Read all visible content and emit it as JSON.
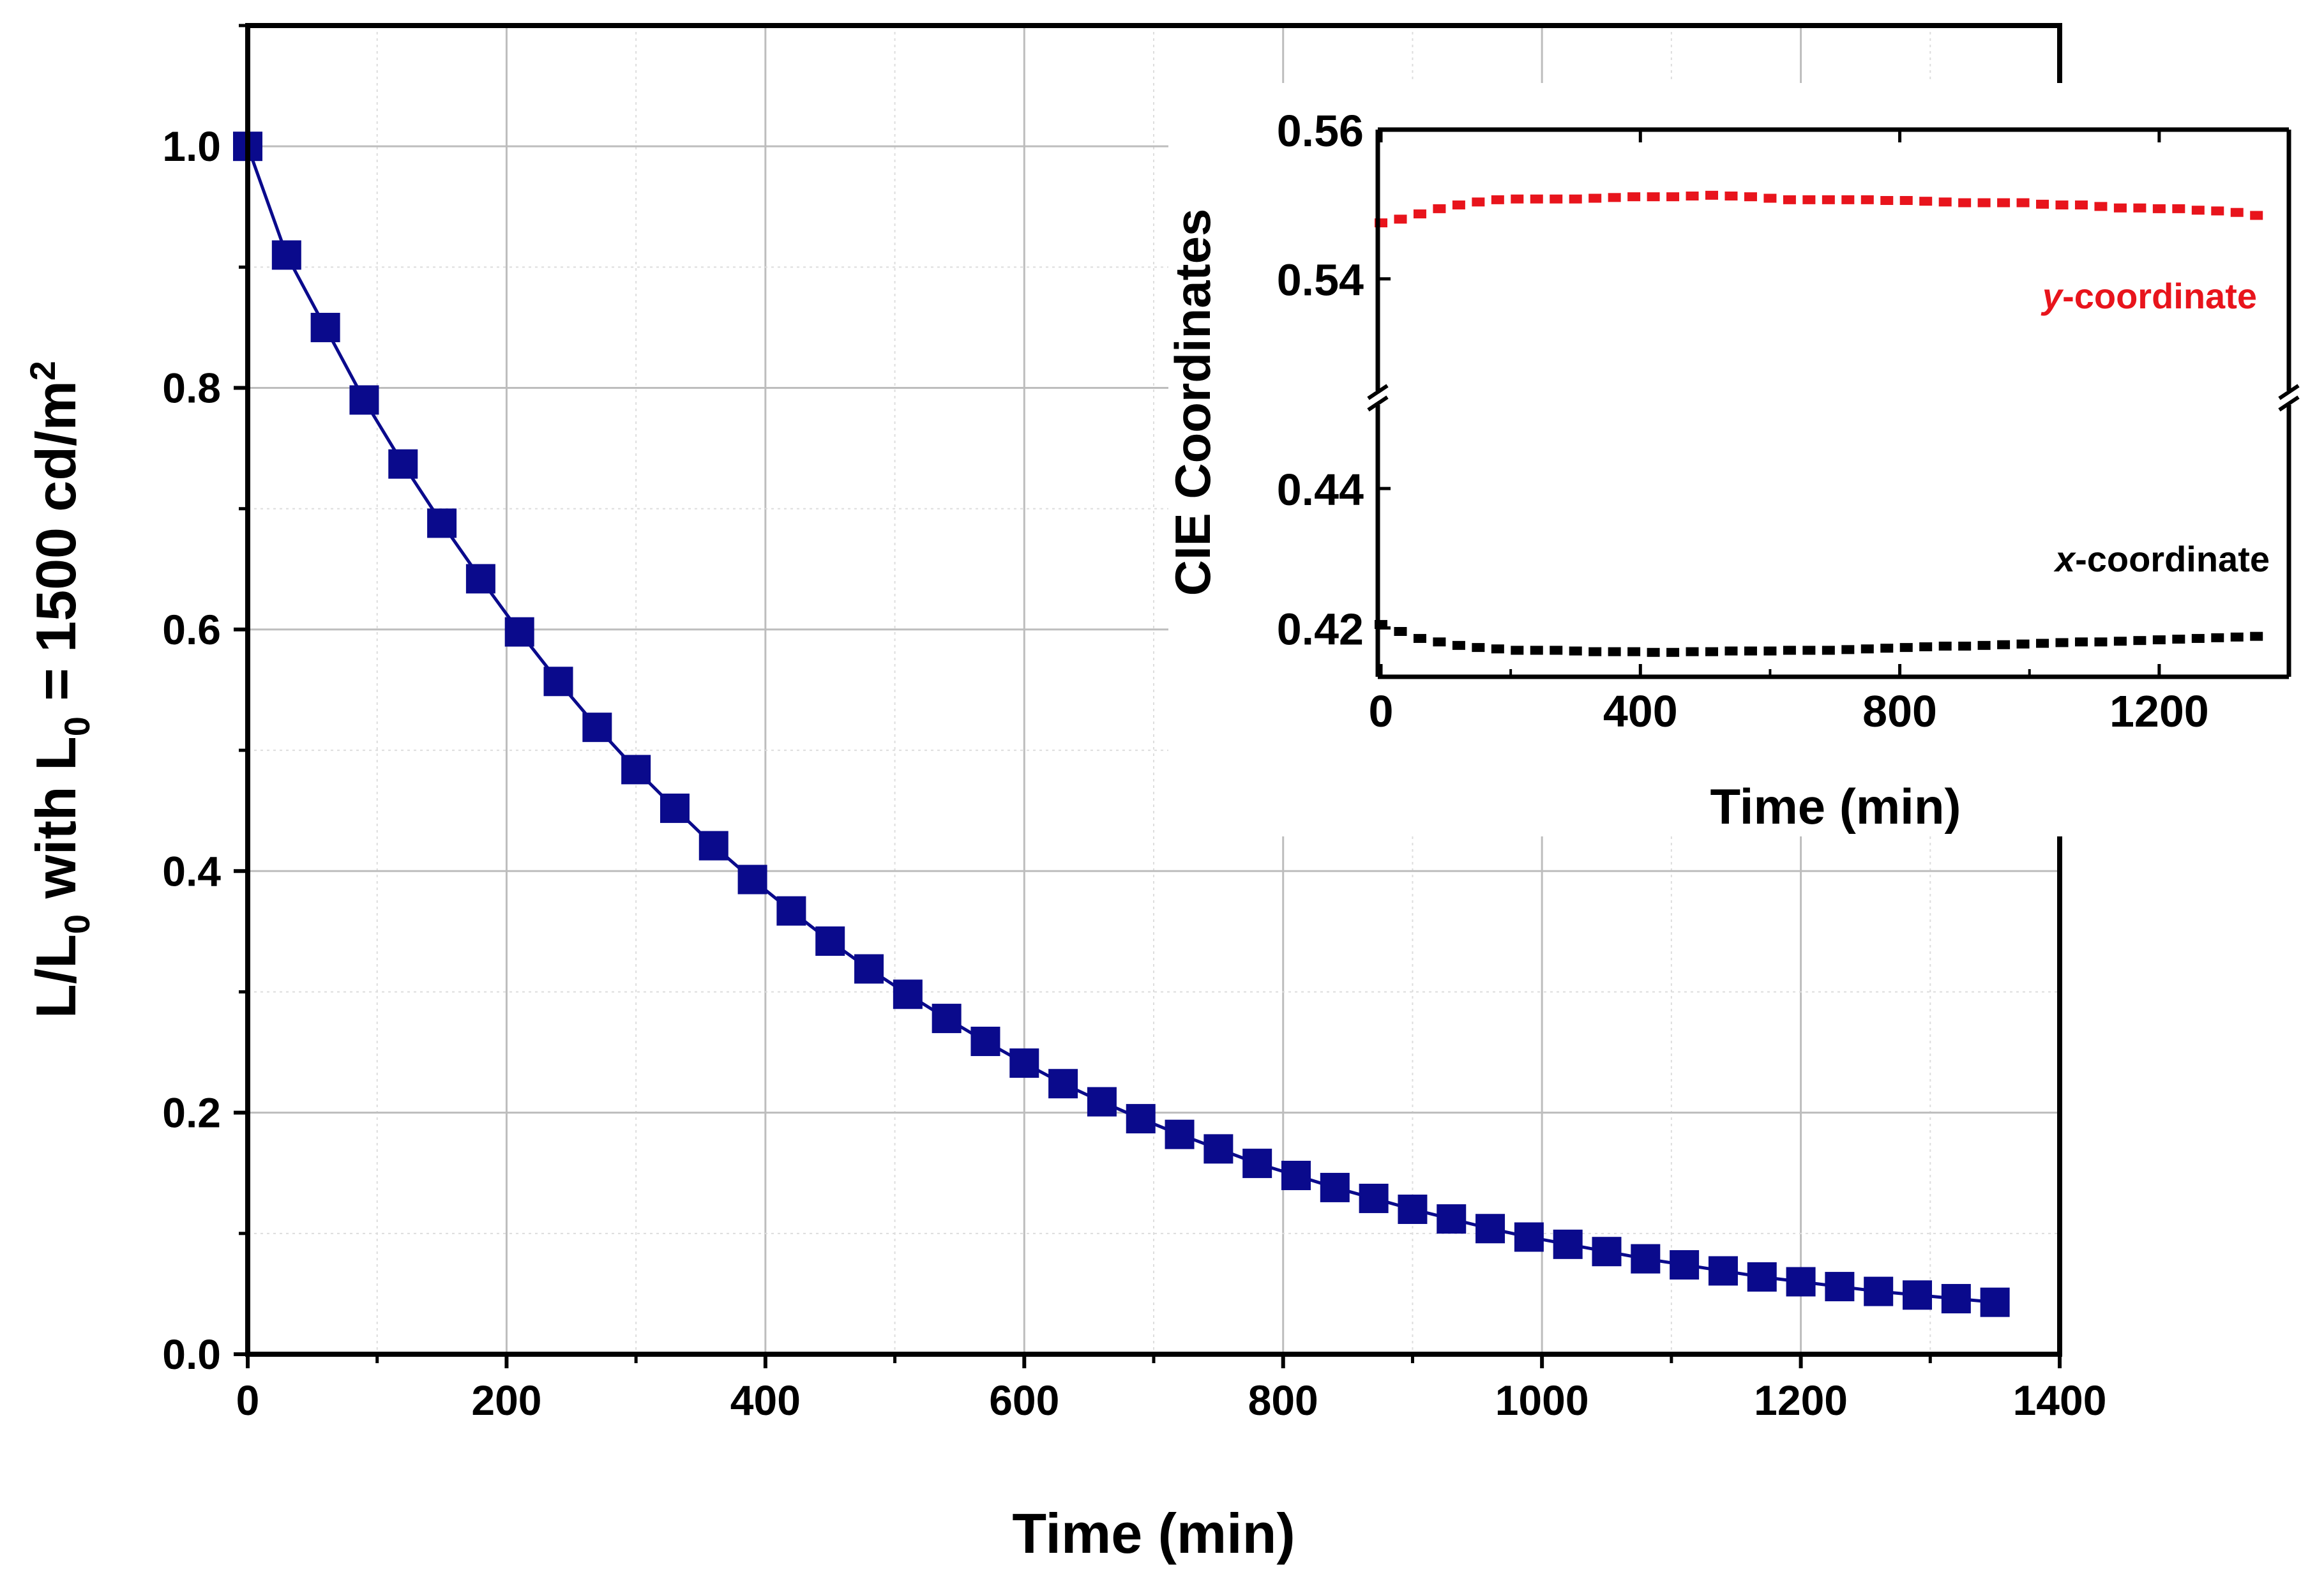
{
  "chart_data": [
    {
      "type": "scatter",
      "xlabel": "Time (min)",
      "ylabel_parts": {
        "a": "L/L",
        "sub1": "0",
        "b": " with L",
        "sub2": "0",
        "c": " = 1500 cd/m",
        "sup": "2"
      },
      "xlim": [
        0,
        1400
      ],
      "ylim": [
        0,
        1.1
      ],
      "xticks": [
        0,
        200,
        400,
        600,
        800,
        1000,
        1200,
        1400
      ],
      "xtick_labels": [
        "0",
        "200",
        "400",
        "600",
        "800",
        "1000",
        "1200",
        "1400"
      ],
      "yticks": [
        0.0,
        0.2,
        0.4,
        0.6,
        0.8,
        1.0
      ],
      "ytick_labels": [
        "0.0",
        "0.2",
        "0.4",
        "0.6",
        "0.8",
        "1.0"
      ],
      "grid": true,
      "colors": {
        "marker": "#0a0a8c",
        "line": "#0a0a8c"
      },
      "series": [
        {
          "name": "L/L0",
          "x": [
            0,
            30,
            60,
            90,
            120,
            150,
            180,
            210,
            240,
            270,
            300,
            330,
            360,
            390,
            420,
            450,
            480,
            510,
            540,
            570,
            600,
            630,
            660,
            690,
            720,
            750,
            780,
            810,
            840,
            870,
            900,
            930,
            960,
            990,
            1020,
            1050,
            1080,
            1110,
            1140,
            1170,
            1200,
            1230,
            1260,
            1290,
            1320,
            1350
          ],
          "values": [
            1.0,
            0.91,
            0.85,
            0.79,
            0.737,
            0.688,
            0.642,
            0.598,
            0.557,
            0.519,
            0.484,
            0.452,
            0.421,
            0.393,
            0.367,
            0.342,
            0.319,
            0.298,
            0.278,
            0.259,
            0.241,
            0.224,
            0.209,
            0.195,
            0.182,
            0.17,
            0.158,
            0.148,
            0.138,
            0.129,
            0.12,
            0.112,
            0.104,
            0.097,
            0.091,
            0.085,
            0.079,
            0.074,
            0.069,
            0.064,
            0.06,
            0.056,
            0.052,
            0.049,
            0.046,
            0.043
          ]
        }
      ]
    },
    {
      "type": "scatter",
      "inset": true,
      "ylabel": "CIE Coordinates",
      "xlabel": "Time (min)",
      "xlim": [
        0,
        1400
      ],
      "xticks": [
        0,
        400,
        800,
        1200
      ],
      "xtick_labels": [
        "0",
        "400",
        "800",
        "1200"
      ],
      "y_upper_range": [
        0.525,
        0.56
      ],
      "y_lower_range": [
        0.413,
        0.452
      ],
      "yticks_upper": [
        0.54,
        0.56
      ],
      "ytick_labels_upper": [
        "0.54",
        "0.56"
      ],
      "yticks_lower": [
        0.42,
        0.44
      ],
      "ytick_labels_lower": [
        "0.42",
        "0.44"
      ],
      "axis_break": true,
      "annotations": {
        "y_label_italic": "y",
        "y_label_rest": "-coordinate",
        "x_label_italic": "x",
        "x_label_rest": "-coordinate"
      },
      "series": [
        {
          "name": "y-coordinate",
          "color": "#e8141c",
          "x": [
            0,
            30,
            60,
            90,
            120,
            150,
            180,
            210,
            240,
            270,
            300,
            330,
            360,
            390,
            420,
            450,
            480,
            510,
            540,
            570,
            600,
            630,
            660,
            690,
            720,
            750,
            780,
            810,
            840,
            870,
            900,
            930,
            960,
            990,
            1020,
            1050,
            1080,
            1110,
            1140,
            1170,
            1200,
            1230,
            1260,
            1290,
            1320,
            1350
          ],
          "values": [
            0.5475,
            0.548,
            0.5487,
            0.5494,
            0.5499,
            0.5503,
            0.5506,
            0.5507,
            0.5507,
            0.5507,
            0.5507,
            0.5508,
            0.5509,
            0.551,
            0.551,
            0.551,
            0.5511,
            0.5512,
            0.5511,
            0.551,
            0.5508,
            0.5506,
            0.5506,
            0.5506,
            0.5506,
            0.5506,
            0.5505,
            0.5505,
            0.5504,
            0.5503,
            0.5502,
            0.5502,
            0.5502,
            0.5502,
            0.55,
            0.5499,
            0.5499,
            0.5497,
            0.5495,
            0.5495,
            0.5494,
            0.5494,
            0.5492,
            0.5491,
            0.5489,
            0.5485
          ]
        },
        {
          "name": "x-coordinate",
          "color": "#000000",
          "x": [
            0,
            30,
            60,
            90,
            120,
            150,
            180,
            210,
            240,
            270,
            300,
            330,
            360,
            390,
            420,
            450,
            480,
            510,
            540,
            570,
            600,
            630,
            660,
            690,
            720,
            750,
            780,
            810,
            840,
            870,
            900,
            930,
            960,
            990,
            1020,
            1050,
            1080,
            1110,
            1140,
            1170,
            1200,
            1230,
            1260,
            1290,
            1320,
            1350
          ],
          "values": [
            0.4205,
            0.4195,
            0.4185,
            0.418,
            0.4175,
            0.4172,
            0.417,
            0.4168,
            0.4168,
            0.4168,
            0.4167,
            0.4166,
            0.4166,
            0.4166,
            0.4165,
            0.4165,
            0.4166,
            0.4166,
            0.4167,
            0.4167,
            0.4167,
            0.4168,
            0.4168,
            0.4168,
            0.4169,
            0.417,
            0.4171,
            0.4172,
            0.4173,
            0.4174,
            0.4174,
            0.4175,
            0.4176,
            0.4177,
            0.4178,
            0.4179,
            0.418,
            0.418,
            0.4181,
            0.4182,
            0.4183,
            0.4184,
            0.4185,
            0.4186,
            0.4187,
            0.4188
          ]
        }
      ]
    }
  ]
}
